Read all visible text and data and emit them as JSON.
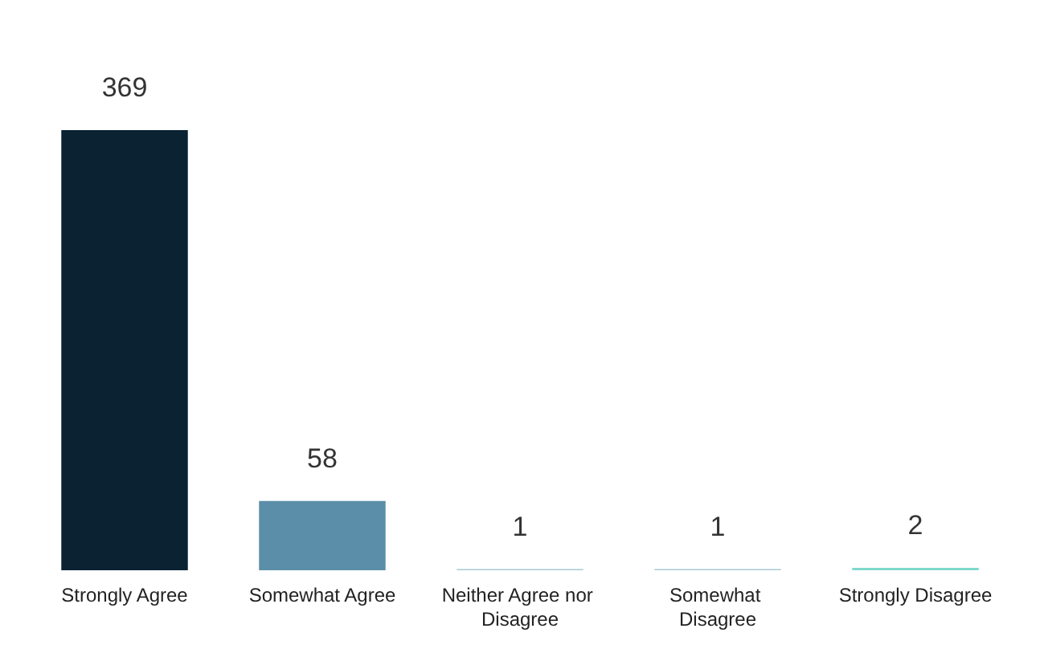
{
  "chart_data": {
    "type": "bar",
    "categories": [
      "Strongly Agree",
      "Somewhat Agree",
      "Neither Agree nor Disagree",
      "Somewhat Disagree",
      "Strongly Disagree"
    ],
    "values": [
      369,
      58,
      1,
      1,
      2
    ],
    "colors": [
      "#0b2233",
      "#5b8ea8",
      "#a9c9d6",
      "#a9c9d6",
      "#7fd9cc"
    ],
    "data_labels": true,
    "tick_labels": "x"
  }
}
